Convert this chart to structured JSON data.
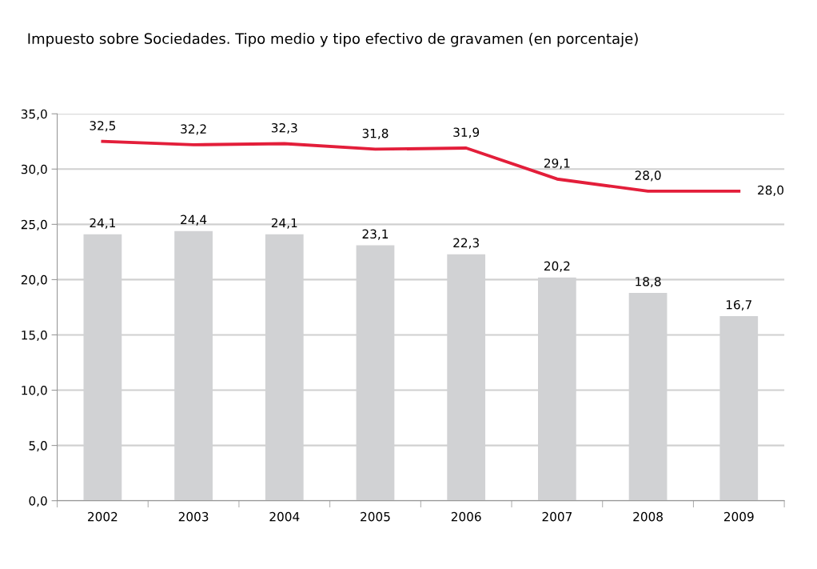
{
  "chart_data": {
    "type": "bar",
    "title": "Impuesto sobre Sociedades. Tipo medio y tipo efectivo de gravamen (en porcentaje)",
    "categories": [
      "2002",
      "2003",
      "2004",
      "2005",
      "2006",
      "2007",
      "2008",
      "2009"
    ],
    "series": [
      {
        "color": "#d1d2d4",
        "values": [
          24.1,
          24.4,
          24.1,
          23.1,
          22.3,
          20.2,
          18.8,
          16.7
        ],
        "value_labels": [
          "24,1",
          "24,4",
          "24,1",
          "23,1",
          "22,3",
          "20,2",
          "18,8",
          "16,7"
        ]
      },
      {
        "type": "line",
        "color": "#e31e3a",
        "values": [
          32.5,
          32.2,
          32.3,
          31.8,
          31.9,
          29.1,
          28.0,
          28.0
        ],
        "value_labels": [
          "32,5",
          "32,2",
          "32,3",
          "31,8",
          "31,9",
          "29,1",
          "28,0",
          "28,0"
        ]
      }
    ],
    "ylim": [
      0,
      35
    ],
    "yticks": [
      {
        "value": 0,
        "label": "0,0"
      },
      {
        "value": 5,
        "label": "5,0"
      },
      {
        "value": 10,
        "label": "10,0"
      },
      {
        "value": 15,
        "label": "15,0"
      },
      {
        "value": 20,
        "label": "20,0"
      },
      {
        "value": 25,
        "label": "25,0"
      },
      {
        "value": 30,
        "label": "30,0"
      },
      {
        "value": 35,
        "label": "35,0"
      }
    ],
    "grid": "y",
    "legend": false,
    "marker": "none",
    "line_style": "solid"
  }
}
